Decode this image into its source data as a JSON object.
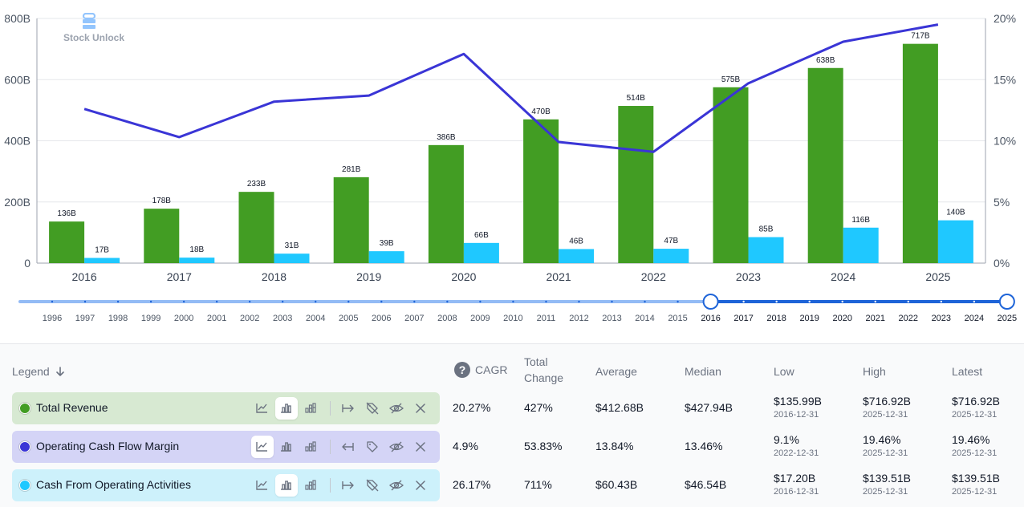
{
  "brand": {
    "name": "Stock Unlock"
  },
  "chart_data": {
    "type": "bar+line",
    "categories": [
      "2016",
      "2017",
      "2018",
      "2019",
      "2020",
      "2021",
      "2022",
      "2023",
      "2024",
      "2025"
    ],
    "series": [
      {
        "name": "Total Revenue",
        "type": "bar",
        "axis": "left",
        "color": "#429d23",
        "values": [
          136,
          178,
          233,
          281,
          386,
          470,
          514,
          575,
          638,
          717
        ],
        "labels": [
          "136B",
          "178B",
          "233B",
          "281B",
          "386B",
          "470B",
          "514B",
          "575B",
          "638B",
          "717B"
        ]
      },
      {
        "name": "Cash From Operating Activities",
        "type": "bar",
        "axis": "left",
        "color": "#1fc8ff",
        "values": [
          17,
          18,
          31,
          39,
          66,
          46,
          47,
          85,
          116,
          140
        ],
        "labels": [
          "17B",
          "18B",
          "31B",
          "39B",
          "66B",
          "46B",
          "47B",
          "85B",
          "116B",
          "140B"
        ]
      },
      {
        "name": "Operating Cash Flow Margin",
        "type": "line",
        "axis": "right",
        "color": "#3a35d6",
        "values": [
          12.6,
          10.3,
          13.2,
          13.7,
          17.1,
          9.9,
          9.1,
          14.7,
          18.1,
          19.5
        ]
      }
    ],
    "y_left": {
      "min": 0,
      "max": 800,
      "ticks": [
        0,
        200,
        400,
        600,
        800
      ],
      "tick_labels": [
        "0",
        "200B",
        "400B",
        "600B",
        "800B"
      ]
    },
    "y_right": {
      "min": 0,
      "max": 20,
      "ticks": [
        0,
        5,
        10,
        15,
        20
      ],
      "tick_labels": [
        "0%",
        "5%",
        "10%",
        "15%",
        "20%"
      ]
    },
    "grid": true
  },
  "slider": {
    "years": [
      "1996",
      "1997",
      "1998",
      "1999",
      "2000",
      "2001",
      "2002",
      "2003",
      "2004",
      "2005",
      "2006",
      "2007",
      "2008",
      "2009",
      "2010",
      "2011",
      "2012",
      "2013",
      "2014",
      "2015",
      "2016",
      "2017",
      "2018",
      "2019",
      "2020",
      "2021",
      "2022",
      "2023",
      "2024",
      "2025"
    ],
    "selected_start": "2016",
    "selected_end": "2025",
    "track_color": "#93bbf5",
    "active_color": "#1e64d8"
  },
  "table": {
    "headers": {
      "legend": "Legend",
      "cagr": "CAGR",
      "total_change_1": "Total",
      "total_change_2": "Change",
      "average": "Average",
      "median": "Median",
      "low": "Low",
      "high": "High",
      "latest": "Latest"
    },
    "rows": [
      {
        "name": "Total Revenue",
        "color": "#429d23",
        "bg": "#d7e9d2",
        "active_tool": "bar",
        "cagr": "20.27%",
        "total_change": "427%",
        "average": "$412.68B",
        "median": "$427.94B",
        "low": "$135.99B",
        "low_date": "2016-12-31",
        "high": "$716.92B",
        "high_date": "2025-12-31",
        "latest": "$716.92B",
        "latest_date": "2025-12-31"
      },
      {
        "name": "Operating Cash Flow Margin",
        "color": "#3a35d6",
        "bg": "#d4d4f6",
        "active_tool": "line",
        "cagr": "4.9%",
        "total_change": "53.83%",
        "average": "13.84%",
        "median": "13.46%",
        "low": "9.1%",
        "low_date": "2022-12-31",
        "high": "19.46%",
        "high_date": "2025-12-31",
        "latest": "19.46%",
        "latest_date": "2025-12-31"
      },
      {
        "name": "Cash From Operating Activities",
        "color": "#1fc8ff",
        "bg": "#cdf1fb",
        "active_tool": "bar",
        "cagr": "26.17%",
        "total_change": "711%",
        "average": "$60.43B",
        "median": "$46.54B",
        "low": "$17.20B",
        "low_date": "2016-12-31",
        "high": "$139.51B",
        "high_date": "2025-12-31",
        "latest": "$139.51B",
        "latest_date": "2025-12-31"
      }
    ]
  }
}
